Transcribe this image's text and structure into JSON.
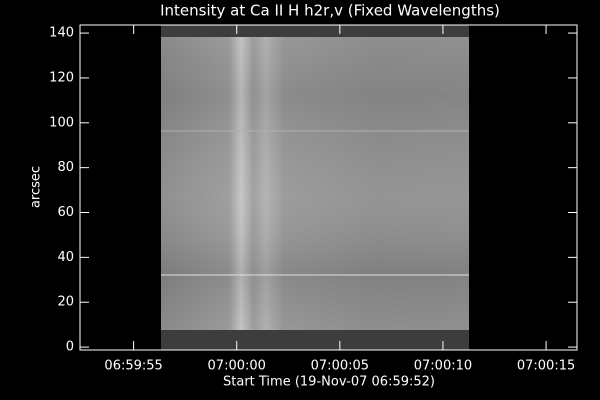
{
  "chart_data": {
    "type": "image",
    "title": "Intensity at Ca II H h2r,v (Fixed Wavelengths)",
    "xlabel": "Start Time (19-Nov-07 06:59:52)",
    "ylabel": "arcsec",
    "xlim": [
      0.4,
      24.5
    ],
    "xticks": [
      {
        "value": 3,
        "label": "06:59:55"
      },
      {
        "value": 8,
        "label": "07:00:00"
      },
      {
        "value": 13,
        "label": "07:00:05"
      },
      {
        "value": 18,
        "label": "07:00:10"
      },
      {
        "value": 23,
        "label": "07:00:15"
      }
    ],
    "ylim": [
      -1.3,
      143.6
    ],
    "yticks": [
      0,
      20,
      40,
      60,
      80,
      100,
      120,
      140
    ]
  }
}
